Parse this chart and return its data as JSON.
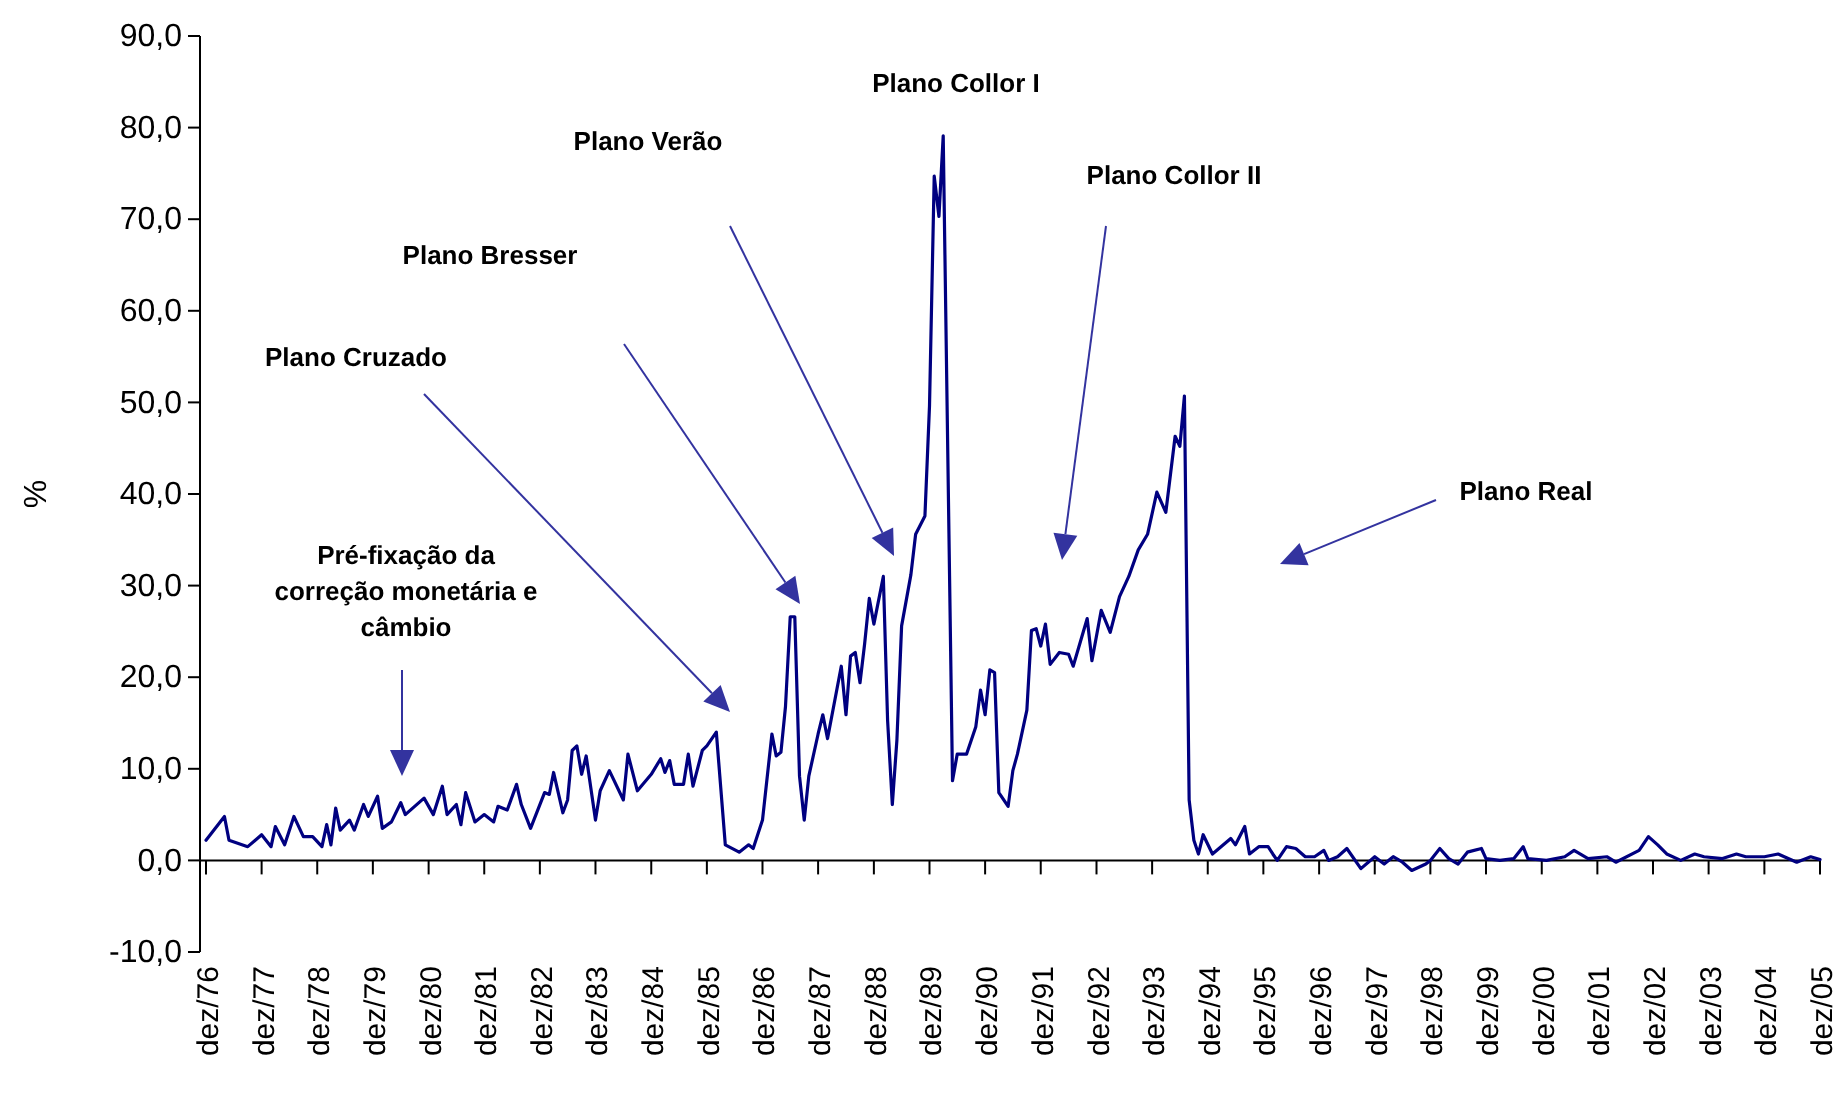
{
  "chart_data": {
    "type": "line",
    "ylabel": "%",
    "ylim": [
      -10,
      90
    ],
    "yticks": [
      {
        "value": -10,
        "label": "-10,0"
      },
      {
        "value": 0,
        "label": "0,0"
      },
      {
        "value": 10,
        "label": "10,0"
      },
      {
        "value": 20,
        "label": "20,0"
      },
      {
        "value": 30,
        "label": "30,0"
      },
      {
        "value": 40,
        "label": "40,0"
      },
      {
        "value": 50,
        "label": "50,0"
      },
      {
        "value": 60,
        "label": "60,0"
      },
      {
        "value": 70,
        "label": "70,0"
      },
      {
        "value": 80,
        "label": "80,0"
      },
      {
        "value": 90,
        "label": "90,0"
      }
    ],
    "xlim": [
      "1976-12",
      "2005-12"
    ],
    "xticks": [
      {
        "value": "1976-12",
        "label": "dez/76"
      },
      {
        "value": "1977-12",
        "label": "dez/77"
      },
      {
        "value": "1978-12",
        "label": "dez/78"
      },
      {
        "value": "1979-12",
        "label": "dez/79"
      },
      {
        "value": "1980-12",
        "label": "dez/80"
      },
      {
        "value": "1981-12",
        "label": "dez/81"
      },
      {
        "value": "1982-12",
        "label": "dez/82"
      },
      {
        "value": "1983-12",
        "label": "dez/83"
      },
      {
        "value": "1984-12",
        "label": "dez/84"
      },
      {
        "value": "1985-12",
        "label": "dez/85"
      },
      {
        "value": "1986-12",
        "label": "dez/86"
      },
      {
        "value": "1987-12",
        "label": "dez/87"
      },
      {
        "value": "1988-12",
        "label": "dez/88"
      },
      {
        "value": "1989-12",
        "label": "dez/89"
      },
      {
        "value": "1990-12",
        "label": "dez/90"
      },
      {
        "value": "1991-12",
        "label": "dez/91"
      },
      {
        "value": "1992-12",
        "label": "dez/92"
      },
      {
        "value": "1993-12",
        "label": "dez/93"
      },
      {
        "value": "1994-12",
        "label": "dez/94"
      },
      {
        "value": "1995-12",
        "label": "dez/95"
      },
      {
        "value": "1996-12",
        "label": "dez/96"
      },
      {
        "value": "1997-12",
        "label": "dez/97"
      },
      {
        "value": "1998-12",
        "label": "dez/98"
      },
      {
        "value": "1999-12",
        "label": "dez/99"
      },
      {
        "value": "2000-12",
        "label": "dez/00"
      },
      {
        "value": "2001-12",
        "label": "dez/01"
      },
      {
        "value": "2002-12",
        "label": "dez/02"
      },
      {
        "value": "2003-12",
        "label": "dez/03"
      },
      {
        "value": "2004-12",
        "label": "dez/04"
      },
      {
        "value": "2005-12",
        "label": "dez/05"
      }
    ],
    "series": [
      {
        "color": "#000080",
        "x": [
          "1976-12",
          "1977-04",
          "1977-05",
          "1977-09",
          "1977-12",
          "1978-02",
          "1978-03",
          "1978-05",
          "1978-07",
          "1978-09",
          "1978-11",
          "1979-01",
          "1979-02",
          "1979-03",
          "1979-04",
          "1979-05",
          "1979-07",
          "1979-08",
          "1979-10",
          "1979-11",
          "1980-01",
          "1980-02",
          "1980-04",
          "1980-06",
          "1980-07",
          "1980-11",
          "1981-01",
          "1981-03",
          "1981-04",
          "1981-06",
          "1981-07",
          "1981-08",
          "1981-10",
          "1981-12",
          "1982-02",
          "1982-03",
          "1982-05",
          "1982-07",
          "1982-08",
          "1982-10",
          "1983-01",
          "1983-02",
          "1983-03",
          "1983-05",
          "1983-06",
          "1983-07",
          "1983-08",
          "1983-09",
          "1983-10",
          "1983-12",
          "1984-01",
          "1984-03",
          "1984-06",
          "1984-07",
          "1984-09",
          "1984-12",
          "1985-02",
          "1985-03",
          "1985-04",
          "1985-05",
          "1985-07",
          "1985-08",
          "1985-09",
          "1985-11",
          "1985-12",
          "1986-02",
          "1986-04",
          "1986-07",
          "1986-09",
          "1986-10",
          "1986-12",
          "1987-02",
          "1987-03",
          "1987-04",
          "1987-05",
          "1987-06",
          "1987-07",
          "1987-08",
          "1987-09",
          "1987-10",
          "1987-12",
          "1988-01",
          "1988-02",
          "1988-05",
          "1988-06",
          "1988-07",
          "1988-08",
          "1988-09",
          "1988-10",
          "1988-11",
          "1988-12",
          "1989-02",
          "1989-03",
          "1989-04",
          "1989-05",
          "1989-06",
          "1989-08",
          "1989-09",
          "1989-11",
          "1989-12",
          "1990-01",
          "1990-02",
          "1990-03",
          "1990-05",
          "1990-06",
          "1990-08",
          "1990-10",
          "1990-11",
          "1990-12",
          "1991-01",
          "1991-02",
          "1991-03",
          "1991-05",
          "1991-06",
          "1991-07",
          "1991-09",
          "1991-10",
          "1991-11",
          "1991-12",
          "1992-01",
          "1992-02",
          "1992-04",
          "1992-06",
          "1992-07",
          "1992-10",
          "1992-11",
          "1993-01",
          "1993-03",
          "1993-05",
          "1993-07",
          "1993-09",
          "1993-11",
          "1994-01",
          "1994-03",
          "1994-05",
          "1994-06",
          "1994-07",
          "1994-08",
          "1994-09",
          "1994-10",
          "1994-11",
          "1995-01",
          "1995-05",
          "1995-06",
          "1995-08",
          "1995-09",
          "1995-11",
          "1996-01",
          "1996-02",
          "1996-03",
          "1996-05",
          "1996-07",
          "1996-09",
          "1996-11",
          "1997-01",
          "1997-02",
          "1997-04",
          "1997-06",
          "1997-09",
          "1997-12",
          "1998-02",
          "1998-04",
          "1998-06",
          "1998-08",
          "1998-11",
          "1998-12",
          "1999-02",
          "1999-04",
          "1999-06",
          "1999-08",
          "1999-11",
          "1999-12",
          "2000-03",
          "2000-06",
          "2000-08",
          "2000-09",
          "2001-01",
          "2001-05",
          "2001-07",
          "2001-10",
          "2002-02",
          "2002-04",
          "2002-09",
          "2002-11",
          "2003-01",
          "2003-03",
          "2003-06",
          "2003-09",
          "2003-11",
          "2004-03",
          "2004-06",
          "2004-08",
          "2004-12",
          "2005-03",
          "2005-07",
          "2005-10",
          "2005-12"
        ],
        "values": [
          2.2,
          4.8,
          2.2,
          1.5,
          2.8,
          1.5,
          3.7,
          1.7,
          4.8,
          2.6,
          2.6,
          1.5,
          3.9,
          1.7,
          5.7,
          3.3,
          4.4,
          3.3,
          6.1,
          4.8,
          7.0,
          3.5,
          4.2,
          6.3,
          5.0,
          6.8,
          5.0,
          8.1,
          5.0,
          6.1,
          3.9,
          7.4,
          4.2,
          5.0,
          4.2,
          5.9,
          5.5,
          8.3,
          6.1,
          3.5,
          7.4,
          7.2,
          9.6,
          5.2,
          6.6,
          12.0,
          12.5,
          9.4,
          11.4,
          4.4,
          7.6,
          9.8,
          6.6,
          11.6,
          7.6,
          9.4,
          11.1,
          9.6,
          10.9,
          8.3,
          8.3,
          11.6,
          8.1,
          12.0,
          12.5,
          14.0,
          1.7,
          0.9,
          1.7,
          1.3,
          4.4,
          13.8,
          11.4,
          11.8,
          16.8,
          26.6,
          26.6,
          9.2,
          4.4,
          9.2,
          13.8,
          15.9,
          13.3,
          21.2,
          15.9,
          22.3,
          22.7,
          19.4,
          23.6,
          28.6,
          25.8,
          31.0,
          15.3,
          6.1,
          13.1,
          25.6,
          31.2,
          35.6,
          37.6,
          49.6,
          74.7,
          70.3,
          79.1,
          8.7,
          11.6,
          11.6,
          14.6,
          18.6,
          15.9,
          20.8,
          20.5,
          7.4,
          5.9,
          9.8,
          11.6,
          16.4,
          25.1,
          25.3,
          23.4,
          25.8,
          21.4,
          22.7,
          22.5,
          21.2,
          26.4,
          21.8,
          27.3,
          24.9,
          28.8,
          31.0,
          33.9,
          35.6,
          40.2,
          38.0,
          46.3,
          45.2,
          50.7,
          6.6,
          2.2,
          0.7,
          2.8,
          0.7,
          2.4,
          1.7,
          3.7,
          0.7,
          1.5,
          1.5,
          0.7,
          0,
          1.5,
          1.3,
          0.4,
          0.4,
          1.1,
          0,
          0.4,
          1.3,
          -0.9,
          0.4,
          -0.4,
          0.4,
          -0.2,
          -1.1,
          -0.4,
          0,
          1.3,
          0.2,
          -0.4,
          0.9,
          1.3,
          0.2,
          0,
          0.2,
          1.5,
          0.2,
          0,
          0.4,
          1.1,
          0.2,
          0.4,
          -0.2,
          1.1,
          2.6,
          1.7,
          0.7,
          0,
          0.7,
          0.4,
          0.2,
          0.7,
          0.4,
          0.4,
          0.7,
          -0.2,
          0.4,
          0.1
        ]
      }
    ],
    "annotations": [
      "Pré-fixação da correção monetária e câmbio",
      "Plano Cruzado",
      "Plano Bresser",
      "Plano Verão",
      "Plano Collor I",
      "Plano Collor II",
      "Plano Real"
    ]
  }
}
